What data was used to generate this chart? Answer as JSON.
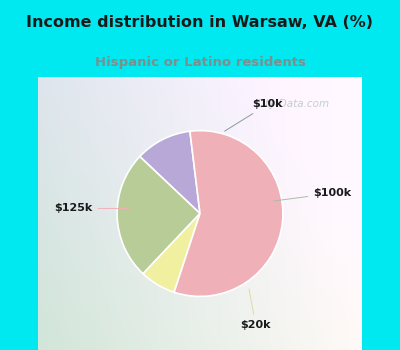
{
  "title": "Income distribution in Warsaw, VA (%)",
  "subtitle": "Hispanic or Latino residents",
  "labels": [
    "$10k",
    "$100k",
    "$20k",
    "$125k"
  ],
  "sizes": [
    11,
    25,
    7,
    57
  ],
  "colors": [
    "#b8a8d8",
    "#b8cc98",
    "#f0f0a0",
    "#f0b0b8"
  ],
  "bg_color": "#00e8f0",
  "chart_bg_left": "#c8e0c8",
  "chart_bg_right": "#e8f4f4",
  "title_color": "#1a1a1a",
  "subtitle_color": "#7a9090",
  "startangle": 97,
  "watermark": "City-Data.com"
}
